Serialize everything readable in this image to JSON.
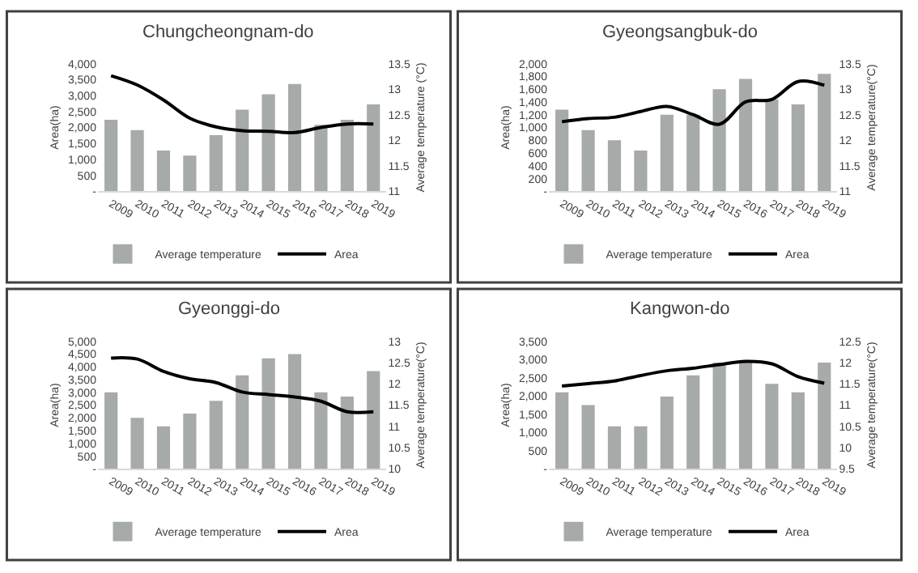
{
  "chart_data": [
    {
      "type": "bar",
      "title": "Chungcheongnam-do",
      "ylabel": "Area(ha)",
      "y2label": "Average temperature (°C)",
      "categories": [
        "2009",
        "2010",
        "2011",
        "2012",
        "2013",
        "2014",
        "2015",
        "2016",
        "2017",
        "2018",
        "2019"
      ],
      "legend": "bottom",
      "series": [
        {
          "name": "Average temperature",
          "color": "#a6aaa8",
          "axis": "y2",
          "values": [
            12.4,
            12.2,
            11.8,
            11.7,
            12.1,
            12.6,
            12.9,
            13.1,
            12.3,
            12.4,
            12.7
          ]
        },
        {
          "name": "Area",
          "type": "line",
          "color": "#000000",
          "axis": "y",
          "values": [
            3620,
            3330,
            2860,
            2290,
            2020,
            1900,
            1880,
            1840,
            2000,
            2110,
            2110
          ]
        }
      ],
      "ylim": [
        0,
        4000
      ],
      "yticks": [
        {
          "value": 0,
          "label": "-"
        },
        500,
        {
          "value": 1000,
          "label": "1,000"
        },
        {
          "value": 1500,
          "label": "1,500"
        },
        {
          "value": 2000,
          "label": "2,000"
        },
        {
          "value": 2500,
          "label": "2,500"
        },
        {
          "value": 3000,
          "label": "3,000"
        },
        {
          "value": 3500,
          "label": "3,500"
        },
        {
          "value": 4000,
          "label": "4,000"
        }
      ],
      "y2lim": [
        11,
        13.5
      ],
      "y2ticks": [
        11,
        11.5,
        12,
        12.5,
        13,
        13.5
      ]
    },
    {
      "type": "bar",
      "title": "Gyeongsangbuk-do",
      "ylabel": "Area(ha)",
      "y2label": "Average temperature(°C)",
      "categories": [
        "2009",
        "2010",
        "2011",
        "2012",
        "2013",
        "2014",
        "2015",
        "2016",
        "2017",
        "2018",
        "2019"
      ],
      "legend": "bottom",
      "series": [
        {
          "name": "Average temperature",
          "color": "#a6aaa8",
          "axis": "y2",
          "values": [
            12.6,
            12.2,
            12.0,
            11.8,
            12.5,
            12.5,
            13.0,
            13.2,
            12.8,
            12.7,
            13.3
          ]
        },
        {
          "name": "Area",
          "type": "line",
          "color": "#000000",
          "axis": "y",
          "values": [
            1090,
            1140,
            1160,
            1250,
            1330,
            1200,
            1050,
            1400,
            1440,
            1720,
            1660
          ]
        }
      ],
      "ylim": [
        0,
        2000
      ],
      "yticks": [
        {
          "value": 0,
          "label": "-"
        },
        200,
        400,
        600,
        800,
        {
          "value": 1000,
          "label": "1,000"
        },
        {
          "value": 1200,
          "label": "1,200"
        },
        {
          "value": 1400,
          "label": "1,400"
        },
        {
          "value": 1600,
          "label": "1,600"
        },
        {
          "value": 1800,
          "label": "1,800"
        },
        {
          "value": 2000,
          "label": "2,000"
        }
      ],
      "y2lim": [
        11,
        13.5
      ],
      "y2ticks": [
        11,
        11.5,
        12,
        12.5,
        13,
        13.5
      ]
    },
    {
      "type": "bar",
      "title": "Gyeonggi-do",
      "ylabel": "Area(ha)",
      "y2label": "Average temperature(°C)",
      "categories": [
        "2009",
        "2010",
        "2011",
        "2012",
        "2013",
        "2014",
        "2015",
        "2016",
        "2017",
        "2018",
        "2019"
      ],
      "legend": "bottom",
      "series": [
        {
          "name": "Average temperature",
          "color": "#a6aaa8",
          "axis": "y2",
          "values": [
            11.8,
            11.2,
            11.0,
            11.3,
            11.6,
            12.2,
            12.6,
            12.7,
            11.8,
            11.7,
            12.3
          ]
        },
        {
          "name": "Area",
          "type": "line",
          "color": "#000000",
          "axis": "y",
          "values": [
            4340,
            4300,
            3820,
            3530,
            3380,
            3010,
            2910,
            2820,
            2650,
            2240,
            2240
          ]
        }
      ],
      "ylim": [
        0,
        5000
      ],
      "yticks": [
        {
          "value": 0,
          "label": "-"
        },
        500,
        {
          "value": 1000,
          "label": "1,000"
        },
        {
          "value": 1500,
          "label": "1,500"
        },
        {
          "value": 2000,
          "label": "2,000"
        },
        {
          "value": 2500,
          "label": "2,500"
        },
        {
          "value": 3000,
          "label": "3,000"
        },
        {
          "value": 3500,
          "label": "3,500"
        },
        {
          "value": 4000,
          "label": "4,000"
        },
        {
          "value": 4500,
          "label": "4,500"
        },
        {
          "value": 5000,
          "label": "5,000"
        }
      ],
      "y2lim": [
        10,
        13
      ],
      "y2ticks": [
        10,
        10.5,
        11,
        11.5,
        12,
        12.5,
        13
      ]
    },
    {
      "type": "bar",
      "title": "Kangwon-do",
      "ylabel": "Area(ha)",
      "y2label": "Average temperature(°C)",
      "categories": [
        "2009",
        "2010",
        "2011",
        "2012",
        "2013",
        "2014",
        "2015",
        "2016",
        "2017",
        "2018",
        "2019"
      ],
      "legend": "bottom",
      "series": [
        {
          "name": "Average temperature",
          "color": "#a6aaa8",
          "axis": "y2",
          "values": [
            11.3,
            11.0,
            10.5,
            10.5,
            11.2,
            11.7,
            12.0,
            12.0,
            11.5,
            11.3,
            12.0
          ]
        },
        {
          "name": "Area",
          "type": "line",
          "color": "#000000",
          "axis": "y",
          "values": [
            2270,
            2340,
            2410,
            2560,
            2690,
            2760,
            2860,
            2950,
            2880,
            2530,
            2350
          ]
        }
      ],
      "ylim": [
        0,
        3500
      ],
      "yticks": [
        {
          "value": 0,
          "label": "-"
        },
        500,
        {
          "value": 1000,
          "label": "1,000"
        },
        {
          "value": 1500,
          "label": "1,500"
        },
        {
          "value": 2000,
          "label": "2,000"
        },
        {
          "value": 2500,
          "label": "2,500"
        },
        {
          "value": 3000,
          "label": "3,000"
        },
        {
          "value": 3500,
          "label": "3,500"
        }
      ],
      "y2lim": [
        9.5,
        12.5
      ],
      "y2ticks": [
        9.5,
        10,
        10.5,
        11,
        11.5,
        12,
        12.5
      ]
    }
  ]
}
